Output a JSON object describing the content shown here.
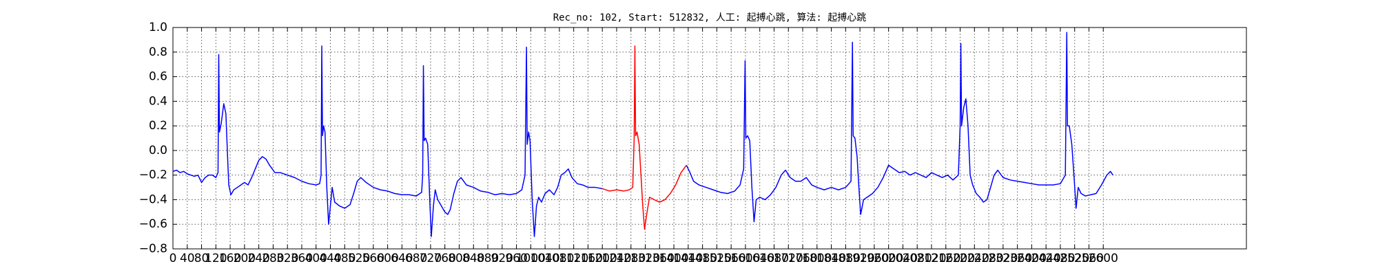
{
  "chart_data": {
    "type": "line",
    "title": "Rec_no: 102, Start: 512832, 人工: 起搏心跳, 算法: 起搏心跳",
    "xlim": [
      0,
      3000
    ],
    "xticks": [
      0,
      40,
      80,
      120,
      160,
      200,
      240,
      280,
      320,
      360,
      400,
      440,
      480,
      520,
      560,
      600,
      640,
      680,
      720,
      760,
      800,
      840,
      880,
      920,
      960,
      1000,
      1040,
      1080,
      1120,
      1160,
      1200,
      1240,
      1280,
      1320,
      1360,
      1400,
      1440,
      1480,
      1520,
      1560,
      1600,
      1640,
      1680,
      1720,
      1760,
      1800,
      1840,
      1880,
      1920,
      1960,
      2000,
      2040,
      2080,
      2120,
      2160,
      2200,
      2240,
      2280,
      2320,
      2360,
      2400,
      2440,
      2480,
      2520,
      2560,
      2600
    ],
    "ylim": [
      -0.8,
      1.0
    ],
    "yticks": [
      {
        "value": -0.8,
        "label": "−0.8"
      },
      {
        "value": -0.6,
        "label": "−0.6"
      },
      {
        "value": -0.4,
        "label": "−0.4"
      },
      {
        "value": -0.2,
        "label": "−0.2"
      },
      {
        "value": 0,
        "label": "0.0"
      },
      0.2,
      0.4,
      0.6,
      0.8,
      {
        "value": 1,
        "label": "1.0"
      }
    ],
    "grid": true,
    "series": [
      {
        "color": "#0000ff",
        "x": [
          0,
          10,
          20,
          30,
          40,
          50,
          60,
          70,
          80,
          90,
          100,
          110,
          120,
          126,
          128,
          130,
          135,
          142,
          148,
          152,
          156,
          162,
          170,
          180,
          190,
          200,
          210,
          220,
          230,
          240,
          250,
          260,
          270,
          285,
          300,
          320,
          340,
          360,
          380,
          400,
          410,
          414,
          416,
          418,
          421,
          425,
          430,
          435,
          440,
          445,
          452,
          465,
          480,
          495,
          505,
          515,
          525,
          540,
          560,
          580,
          600,
          620,
          640,
          660,
          680,
          695,
          698,
          700,
          702,
          706,
          712,
          717,
          722,
          728,
          733,
          740,
          750,
          760,
          768,
          775,
          785,
          795,
          805,
          820,
          840,
          860,
          880,
          900,
          920,
          940,
          960,
          975,
          984,
          988,
          990,
          994,
          998,
          1004,
          1010,
          1016,
          1022,
          1030,
          1040,
          1052,
          1065,
          1075,
          1085,
          1095,
          1105,
          1115,
          1130,
          1145,
          1160,
          1180,
          1200,
          1300,
          1435,
          1445,
          1455,
          1470,
          1490,
          1510,
          1530,
          1550,
          1570,
          1585,
          1595,
          1599,
          1601,
          1606,
          1612,
          1618,
          1624,
          1630,
          1640,
          1655,
          1670,
          1685,
          1700,
          1712,
          1725,
          1740,
          1755,
          1770,
          1785,
          1800,
          1820,
          1840,
          1860,
          1880,
          1895,
          1899,
          1901,
          1906,
          1912,
          1917,
          1922,
          1930,
          1940,
          1955,
          1970,
          1985,
          2000,
          2015,
          2030,
          2045,
          2060,
          2075,
          2090,
          2105,
          2120,
          2135,
          2150,
          2165,
          2180,
          2195,
          2200,
          2202,
          2204,
          2210,
          2216,
          2222,
          2228,
          2235,
          2245,
          2255,
          2265,
          2275,
          2285,
          2295,
          2305,
          2320,
          2340,
          2360,
          2380,
          2400,
          2420,
          2440,
          2460,
          2480,
          2494,
          2498,
          2500,
          2505,
          2512,
          2518,
          2524,
          2530,
          2538,
          2550,
          2565,
          2580,
          2595,
          2610,
          2620,
          2627
        ],
        "values": [
          -0.17,
          -0.16,
          -0.18,
          -0.17,
          -0.19,
          -0.2,
          -0.21,
          -0.2,
          -0.26,
          -0.22,
          -0.2,
          -0.2,
          -0.22,
          -0.18,
          0.78,
          0.15,
          0.22,
          0.38,
          0.3,
          0,
          -0.28,
          -0.36,
          -0.32,
          -0.3,
          -0.28,
          -0.26,
          -0.28,
          -0.22,
          -0.15,
          -0.08,
          -0.05,
          -0.07,
          -0.12,
          -0.18,
          -0.18,
          -0.2,
          -0.22,
          -0.25,
          -0.27,
          -0.28,
          -0.27,
          -0.2,
          0.85,
          0.12,
          0.2,
          0.15,
          -0.3,
          -0.6,
          -0.45,
          -0.3,
          -0.42,
          -0.45,
          -0.47,
          -0.44,
          -0.35,
          -0.25,
          -0.22,
          -0.26,
          -0.3,
          -0.32,
          -0.33,
          -0.35,
          -0.36,
          -0.36,
          -0.37,
          -0.34,
          -0.2,
          0.69,
          0.08,
          0.1,
          0.05,
          -0.35,
          -0.7,
          -0.45,
          -0.32,
          -0.4,
          -0.45,
          -0.5,
          -0.52,
          -0.48,
          -0.35,
          -0.25,
          -0.22,
          -0.28,
          -0.3,
          -0.33,
          -0.34,
          -0.36,
          -0.35,
          -0.36,
          -0.35,
          -0.32,
          -0.2,
          0.84,
          0.05,
          0.15,
          0.08,
          -0.4,
          -0.7,
          -0.45,
          -0.38,
          -0.42,
          -0.35,
          -0.32,
          -0.36,
          -0.3,
          -0.2,
          -0.18,
          -0.15,
          -0.22,
          -0.27,
          -0.28,
          -0.3,
          -0.3,
          -0.31,
          null,
          -0.12,
          -0.18,
          -0.25,
          -0.28,
          -0.3,
          -0.32,
          -0.34,
          -0.35,
          -0.33,
          -0.28,
          -0.15,
          0.73,
          0.1,
          0.12,
          0.08,
          -0.3,
          -0.58,
          -0.4,
          -0.38,
          -0.4,
          -0.36,
          -0.3,
          -0.2,
          -0.16,
          -0.22,
          -0.25,
          -0.25,
          -0.22,
          -0.28,
          -0.3,
          -0.32,
          -0.3,
          -0.32,
          -0.3,
          -0.25,
          0.88,
          0.12,
          0.1,
          -0.05,
          -0.3,
          -0.52,
          -0.4,
          -0.38,
          -0.35,
          -0.3,
          -0.22,
          -0.12,
          -0.15,
          -0.18,
          -0.17,
          -0.2,
          -0.18,
          -0.2,
          -0.22,
          -0.18,
          -0.2,
          -0.22,
          -0.2,
          -0.24,
          -0.2,
          0.2,
          0.87,
          0.2,
          0.35,
          0.42,
          0.2,
          -0.2,
          -0.28,
          -0.35,
          -0.38,
          -0.42,
          -0.4,
          -0.3,
          -0.2,
          -0.16,
          -0.22,
          -0.24,
          -0.25,
          -0.26,
          -0.27,
          -0.28,
          -0.28,
          -0.28,
          -0.27,
          -0.2,
          0.96,
          0.2,
          0.2,
          0.05,
          -0.2,
          -0.47,
          -0.3,
          -0.35,
          -0.37,
          -0.36,
          -0.35,
          -0.28,
          -0.2,
          -0.17,
          -0.2
        ]
      },
      {
        "color": "#ff0000",
        "x": [
          1200,
          1220,
          1240,
          1260,
          1275,
          1285,
          1289,
          1291,
          1293,
          1297,
          1303,
          1308,
          1313,
          1318,
          1325,
          1332,
          1345,
          1360,
          1375,
          1390,
          1405,
          1420,
          1435
        ],
        "values": [
          -0.31,
          -0.33,
          -0.32,
          -0.33,
          -0.32,
          -0.3,
          0.1,
          0.85,
          0.12,
          0.15,
          0.05,
          -0.2,
          -0.45,
          -0.64,
          -0.5,
          -0.38,
          -0.4,
          -0.42,
          -0.4,
          -0.35,
          -0.28,
          -0.18,
          -0.12
        ]
      }
    ]
  }
}
